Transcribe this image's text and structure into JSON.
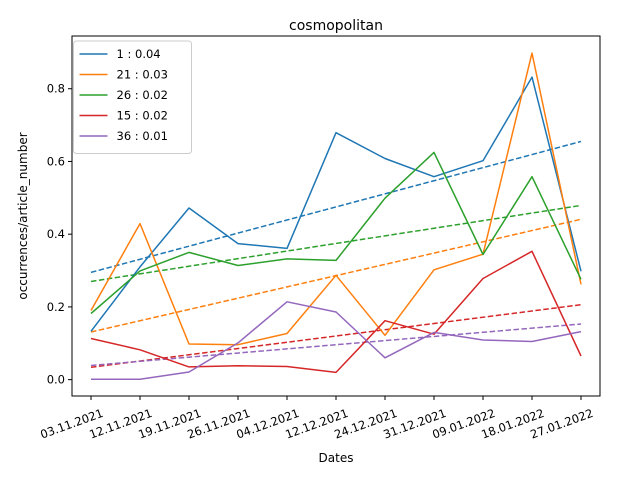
{
  "chart_data": {
    "type": "line",
    "title": "cosmopolitan",
    "xlabel": "Dates",
    "ylabel": "occurrences/article_number",
    "categories": [
      "03.11.2021",
      "12.11.2021",
      "19.11.2021",
      "26.11.2021",
      "04.12.2021",
      "12.12.2021",
      "24.12.2021",
      "31.12.2021",
      "09.01.2022",
      "18.01.2022",
      "27.01.2022"
    ],
    "yticks": [
      "0.0",
      "0.2",
      "0.4",
      "0.6",
      "0.8"
    ],
    "ylim": [
      -0.045,
      0.945
    ],
    "grid": false,
    "legend_position": "top-left",
    "series": [
      {
        "name": "1 :  0.04",
        "color": "#1f77b4",
        "values": [
          0.133,
          0.31,
          0.472,
          0.374,
          0.361,
          0.679,
          0.608,
          0.558,
          0.602,
          0.832,
          0.298
        ],
        "trend": [
          0.295,
          0.655
        ]
      },
      {
        "name": "21 :  0.03",
        "color": "#ff7f0e",
        "values": [
          0.19,
          0.429,
          0.098,
          0.096,
          0.127,
          0.287,
          0.122,
          0.302,
          0.345,
          0.898,
          0.262
        ],
        "trend": [
          0.131,
          0.441
        ]
      },
      {
        "name": "26 :  0.02",
        "color": "#2ca02c",
        "values": [
          0.182,
          0.299,
          0.35,
          0.314,
          0.332,
          0.328,
          0.499,
          0.625,
          0.344,
          0.558,
          0.276
        ],
        "trend": [
          0.27,
          0.479
        ]
      },
      {
        "name": "15 :  0.02",
        "color": "#d62728",
        "values": [
          0.113,
          0.082,
          0.035,
          0.038,
          0.036,
          0.02,
          0.162,
          0.125,
          0.278,
          0.353,
          0.065
        ],
        "trend": [
          0.034,
          0.206
        ]
      },
      {
        "name": "36 :  0.01",
        "color": "#9467bd",
        "values": [
          0.001,
          0.001,
          0.021,
          0.101,
          0.214,
          0.186,
          0.06,
          0.13,
          0.109,
          0.105,
          0.132
        ],
        "trend": [
          0.039,
          0.153
        ]
      }
    ]
  }
}
